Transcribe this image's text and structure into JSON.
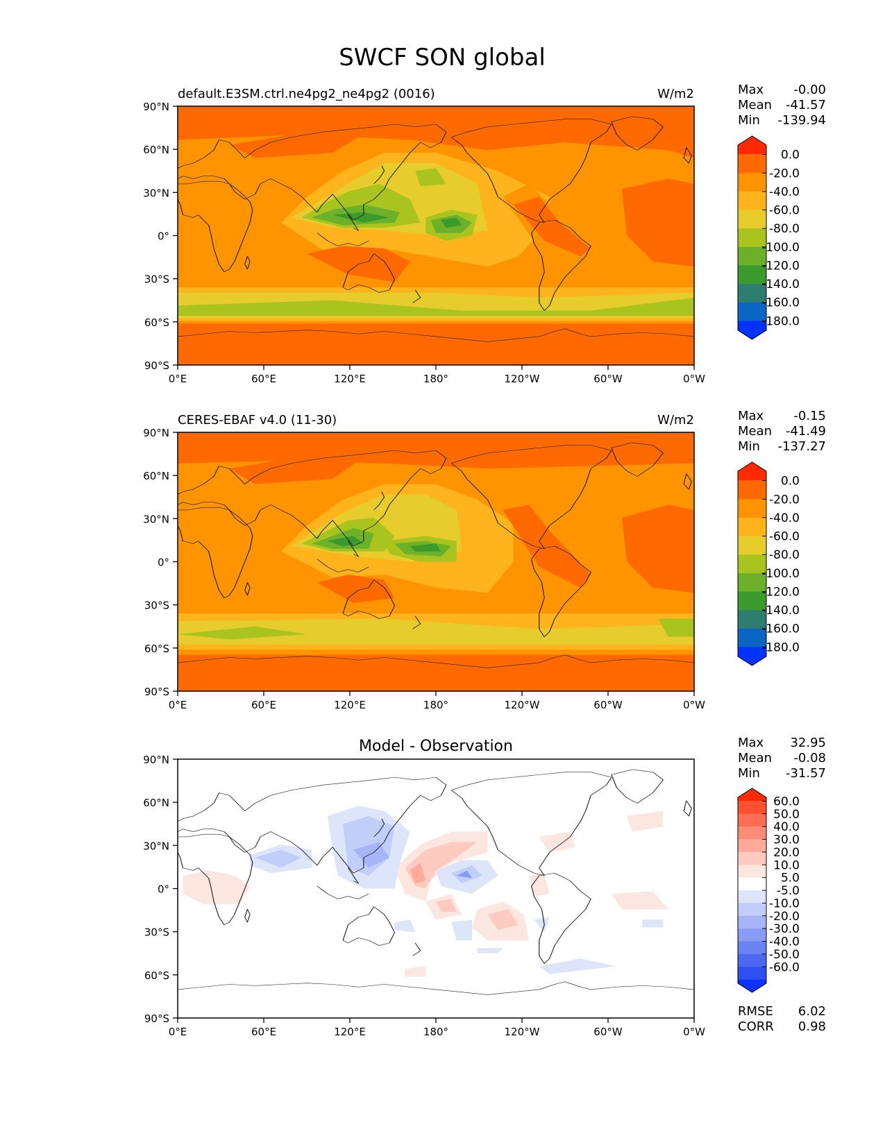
{
  "figure": {
    "title": "SWCF SON global"
  },
  "axes": {
    "lat_ticks": [
      "90°N",
      "60°N",
      "30°N",
      "0°",
      "30°S",
      "60°S",
      "90°S"
    ],
    "lon_ticks": [
      "0°E",
      "60°E",
      "120°E",
      "180°",
      "120°W",
      "60°W",
      "0°W"
    ]
  },
  "colors": {
    "main_scale": [
      "#ff2a00",
      "#ff6a00",
      "#ff9300",
      "#ffb31c",
      "#e6cc2c",
      "#a9c31f",
      "#6db02a",
      "#3a9a2c",
      "#2e7d6e",
      "#0a66c2",
      "#0033ff"
    ],
    "diff_scale": [
      "#ff2a00",
      "#ff5130",
      "#ff6e55",
      "#ff8c78",
      "#ffaa9a",
      "#ffcbc0",
      "#fce6e0",
      "#ffffff",
      "#dde5fb",
      "#c2cefa",
      "#a5b5f8",
      "#889cf5",
      "#6a82f2",
      "#4c68f0",
      "#2e4fee",
      "#0a33ff"
    ]
  },
  "stats_labels": {
    "max": "Max",
    "mean": "Mean",
    "min": "Min",
    "rmse": "RMSE",
    "corr": "CORR"
  },
  "chart_data": [
    {
      "type": "heatmap",
      "title": "default.E3SM.ctrl.ne4pg2_ne4pg2 (0016)",
      "units": "W/m2",
      "xlim": [
        0,
        360
      ],
      "ylim": [
        -90,
        90
      ],
      "stats": {
        "max": "-0.00",
        "mean": "-41.57",
        "min": "-139.94"
      },
      "colorbar": {
        "levels": [
          "0.0",
          "-20.0",
          "-40.0",
          "-60.0",
          "-80.0",
          "-100.0",
          "-120.0",
          "-140.0",
          "-160.0",
          "-180.0"
        ]
      }
    },
    {
      "type": "heatmap",
      "title": "CERES-EBAF v4.0 (11-30)",
      "units": "W/m2",
      "xlim": [
        0,
        360
      ],
      "ylim": [
        -90,
        90
      ],
      "stats": {
        "max": "-0.15",
        "mean": "-41.49",
        "min": "-137.27"
      },
      "colorbar": {
        "levels": [
          "0.0",
          "-20.0",
          "-40.0",
          "-60.0",
          "-80.0",
          "-100.0",
          "-120.0",
          "-140.0",
          "-160.0",
          "-180.0"
        ]
      }
    },
    {
      "type": "heatmap",
      "title": "Model - Observation",
      "xlim": [
        0,
        360
      ],
      "ylim": [
        -90,
        90
      ],
      "stats": {
        "max": "32.95",
        "mean": "-0.08",
        "min": "-31.57"
      },
      "metrics": {
        "rmse": "6.02",
        "corr": "0.98"
      },
      "colorbar": {
        "levels": [
          "60.0",
          "50.0",
          "40.0",
          "30.0",
          "20.0",
          "10.0",
          "5.0",
          "-5.0",
          "-10.0",
          "-20.0",
          "-30.0",
          "-40.0",
          "-50.0",
          "-60.0"
        ]
      }
    }
  ]
}
